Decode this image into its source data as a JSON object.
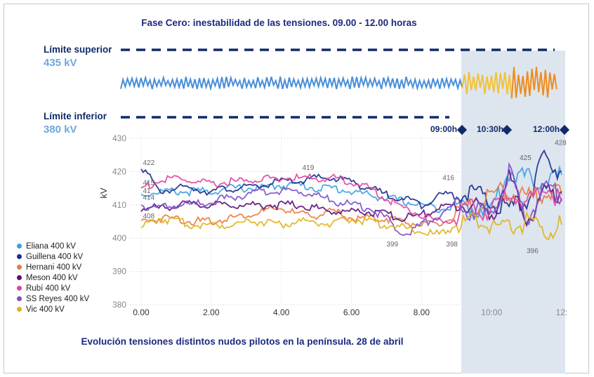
{
  "title": "Fase Cero: inestabilidad de las tensiones. 09.00 - 12.00 horas",
  "caption": "Evolución tensiones distintos nudos pilotos en la península. 28 de abril",
  "upper_limit": {
    "label": "Límite superior",
    "value": "435 kV"
  },
  "lower_limit": {
    "label": "Límite inferior",
    "value": "380 kV"
  },
  "markers": [
    "09:00h",
    "10:30h",
    "12:00h"
  ],
  "chart_data": {
    "type": "line",
    "ylabel": "kV",
    "ylim": [
      380,
      430
    ],
    "yticks": [
      "430",
      "420",
      "410",
      "400",
      "390",
      "380"
    ],
    "xlim": [
      0,
      12
    ],
    "xticks": [
      "0.00",
      "2.00",
      "4.00",
      "6.00",
      "8.00",
      "10:00",
      "12:"
    ],
    "grid": true,
    "legend_position": "bottom-left",
    "highlight_range": [
      9,
      12
    ],
    "x": [
      0,
      0.5,
      1,
      1.5,
      2,
      2.5,
      3,
      3.5,
      4,
      4.5,
      5,
      5.5,
      6,
      6.5,
      7,
      7.5,
      8,
      8.5,
      9,
      9.5,
      10,
      10.5,
      11,
      11.5,
      12
    ],
    "series": [
      {
        "name": "Eliana  400 kV",
        "color": "#3a9ee4",
        "values": [
          413,
          414,
          414,
          414,
          414,
          415,
          415,
          415,
          416,
          416,
          415,
          415,
          414,
          413,
          412,
          411,
          410,
          409,
          410,
          409,
          409,
          420,
          418,
          417,
          419
        ]
      },
      {
        "name": "Guillena  400 kV",
        "color": "#1c2a8c",
        "values": [
          422,
          414,
          415,
          415,
          414,
          415,
          415,
          416,
          417,
          417,
          418,
          418,
          417,
          415,
          413,
          412,
          410,
          413,
          413,
          414,
          410,
          409,
          411,
          424,
          420
        ]
      },
      {
        "name": "Hernani  400 kV",
        "color": "#e87b3f",
        "values": [
          405,
          406,
          406,
          405,
          405,
          406,
          407,
          408,
          409,
          407,
          407,
          408,
          406,
          406,
          406,
          405,
          404,
          404,
          407,
          409,
          413,
          414,
          412,
          414,
          413
        ]
      },
      {
        "name": "Meson  400 kV",
        "color": "#5a0f7a",
        "values": [
          409,
          409,
          410,
          410,
          410,
          410,
          410,
          410,
          410,
          410,
          409,
          408,
          408,
          408,
          407,
          406,
          407,
          409,
          410,
          410,
          407,
          418,
          405,
          413,
          414
        ]
      },
      {
        "name": "Rubí  400 kV",
        "color": "#e0459e",
        "values": [
          415,
          417,
          418,
          417,
          416,
          417,
          417,
          418,
          418,
          418,
          418,
          418,
          417,
          415,
          412,
          409,
          407,
          405,
          406,
          409,
          408,
          414,
          410,
          416,
          411
        ]
      },
      {
        "name": "SS Reyes  400 kV",
        "color": "#7b4fc8",
        "values": [
          410,
          409,
          410,
          410,
          411,
          412,
          413,
          414,
          414,
          414,
          413,
          411,
          410,
          409,
          406,
          401,
          404,
          407,
          410,
          408,
          407,
          420,
          405,
          416,
          412
        ]
      },
      {
        "name": "Vic  400 kV",
        "color": "#e0b21b",
        "values": [
          403,
          406,
          405,
          404,
          404,
          404,
          405,
          405,
          404,
          405,
          405,
          404,
          406,
          405,
          404,
          403,
          402,
          401,
          404,
          405,
          404,
          403,
          405,
          402,
          404
        ]
      }
    ],
    "annotations": [
      {
        "x": 0.05,
        "y": 422,
        "text": "422"
      },
      {
        "x": 0.05,
        "y": 416,
        "text": "415"
      },
      {
        "x": 0.05,
        "y": 413.5,
        "text": "41"
      },
      {
        "x": 0.05,
        "y": 411.5,
        "text": "414"
      },
      {
        "x": 0.05,
        "y": 406,
        "text": "408"
      },
      {
        "x": 4.6,
        "y": 420.5,
        "text": "419"
      },
      {
        "x": 7.0,
        "y": 397.5,
        "text": "399"
      },
      {
        "x": 8.6,
        "y": 417.5,
        "text": "416"
      },
      {
        "x": 8.7,
        "y": 397.5,
        "text": "398"
      },
      {
        "x": 10.8,
        "y": 423.5,
        "text": "425"
      },
      {
        "x": 11.0,
        "y": 395.5,
        "text": "396"
      },
      {
        "x": 11.8,
        "y": 428,
        "text": "428"
      }
    ]
  }
}
